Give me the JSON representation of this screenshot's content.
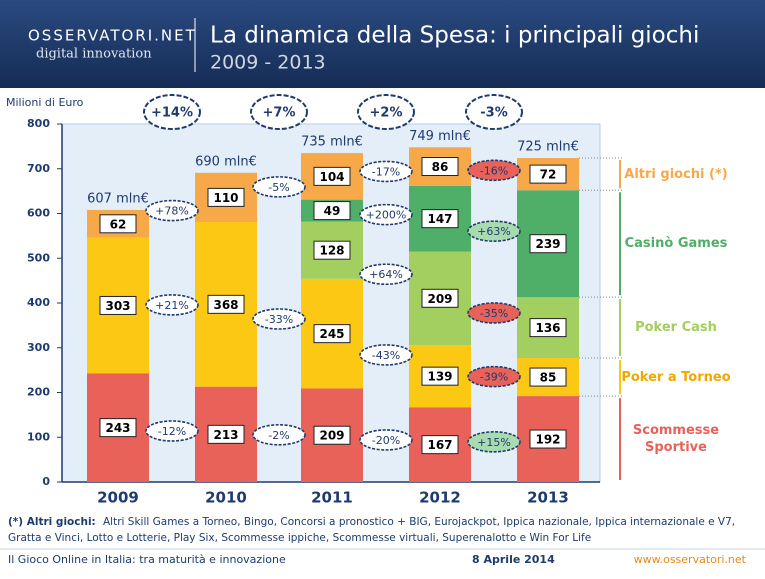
{
  "header": {
    "logo": "OSSERVATORI.NET",
    "logo_tagline": "digital innovation"
  },
  "chart_data": {
    "type": "bar",
    "stacked": true,
    "title": "La dinamica della Spesa: i principali giochi",
    "subtitle": "2009 - 2013",
    "y_label": "Milioni di Euro",
    "categories": [
      "2009",
      "2010",
      "2011",
      "2012",
      "2013"
    ],
    "ylim": [
      0,
      800
    ],
    "yticks": [
      0,
      100,
      200,
      300,
      400,
      500,
      600,
      700,
      800
    ],
    "grid": false,
    "series": [
      {
        "name": "Scommesse Sportive",
        "color": "#e8625a",
        "values": [
          243,
          213,
          209,
          167,
          192
        ],
        "changes": [
          -12,
          -2,
          -20,
          15
        ],
        "change_labels": [
          "-12%",
          "-2%",
          "-20%",
          "+15%"
        ]
      },
      {
        "name": "Poker a Torneo",
        "color": "#fbc814",
        "values": [
          303,
          368,
          245,
          139,
          85
        ],
        "changes": [
          21,
          -33,
          -43,
          -39
        ],
        "change_labels": [
          "+21%",
          "-33%",
          "-43%",
          "-39%"
        ]
      },
      {
        "name": "Poker Cash",
        "color": "#a2cf5f",
        "values": [
          null,
          null,
          128,
          209,
          136
        ],
        "changes": [
          null,
          null,
          64,
          -35
        ],
        "change_labels": [
          null,
          null,
          "+64%",
          "-35%"
        ]
      },
      {
        "name": "Casinò Games",
        "color": "#4fae68",
        "values": [
          null,
          null,
          49,
          147,
          239
        ],
        "changes": [
          null,
          null,
          200,
          63
        ],
        "change_labels": [
          null,
          null,
          "+200%",
          "+63%"
        ]
      },
      {
        "name": "Altri giochi (*)",
        "color": "#f7a94a",
        "values": [
          62,
          110,
          104,
          86,
          72
        ],
        "changes": [
          78,
          -5,
          -17,
          -16
        ],
        "change_labels": [
          "+78%",
          "-5%",
          "-17%",
          "-16%"
        ]
      }
    ],
    "totals": {
      "values": [
        607,
        690,
        735,
        749,
        725
      ],
      "value_labels": [
        "607 mln€",
        "690 mln€",
        "735 mln€",
        "749 mln€",
        "725 mln€"
      ]
    },
    "total_changes": {
      "values": [
        14,
        7,
        2,
        -3
      ],
      "value_labels": [
        "+14%",
        "+7%",
        "+2%",
        "-3%"
      ]
    },
    "footnote": {
      "label": "(*) Altri giochi:",
      "text": "Altri Skill Games a Torneo, Bingo, Concorsi a pronostico + BIG, Eurojackpot, Ippica nazionale, Ippica internazionale e V7, Gratta e Vinci, Lotto e Lotterie, Play Six, Scommesse ippiche, Scommesse virtuali, Superenalotto e Win For Life"
    }
  },
  "footer": {
    "left": "Il Gioco Online in Italia: tra maturità e innovazione",
    "date": "8 Aprile 2014",
    "site": "www.osservatori.net"
  }
}
